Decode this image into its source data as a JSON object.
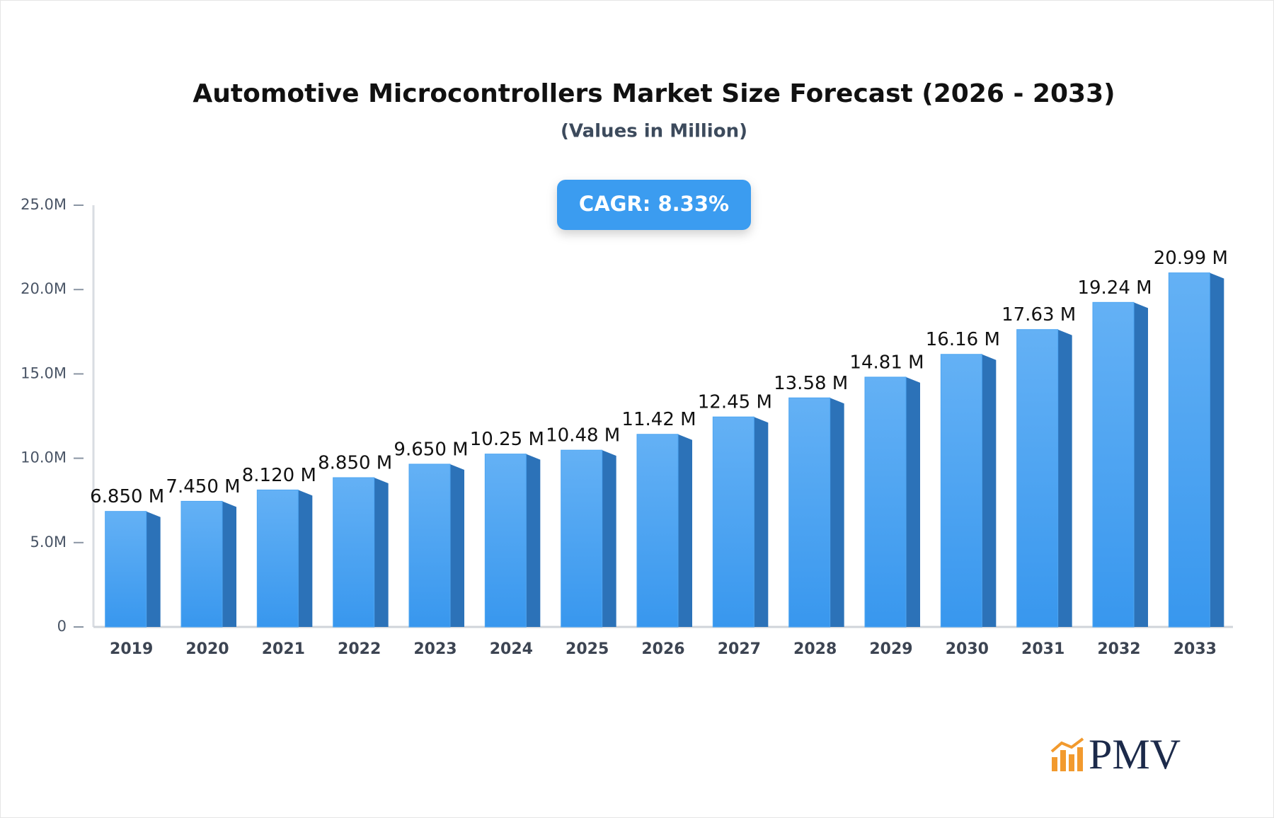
{
  "chart_data": {
    "type": "bar3d",
    "title": "Automotive Microcontrollers Market Size Forecast (2026 - 2033)",
    "subtitle": "(Values in Million)",
    "annotation": "CAGR: 8.33%",
    "logo": "PMV",
    "categories": [
      "2019",
      "2020",
      "2021",
      "2022",
      "2023",
      "2024",
      "2025",
      "2026",
      "2027",
      "2028",
      "2029",
      "2030",
      "2031",
      "2032",
      "2033"
    ],
    "values": [
      6.85,
      7.45,
      8.12,
      8.85,
      9.65,
      10.25,
      10.48,
      11.42,
      12.45,
      13.58,
      14.81,
      16.16,
      17.63,
      19.24,
      20.99
    ],
    "value_labels": [
      "6.850 M",
      "7.450 M",
      "8.120 M",
      "8.850 M",
      "9.650 M",
      "10.25 M",
      "10.48 M",
      "11.42 M",
      "12.45 M",
      "13.58 M",
      "14.81 M",
      "16.16 M",
      "17.63 M",
      "19.24 M",
      "20.99 M"
    ],
    "color": "#4ea6f2",
    "ylim": [
      0,
      25
    ],
    "yticks": [
      0,
      {
        "value": 5,
        "label": "5.0M"
      },
      {
        "value": 10,
        "label": "10.0M"
      },
      {
        "value": 15,
        "label": "15.0M"
      },
      {
        "value": 20,
        "label": "20.0M"
      },
      {
        "value": 25,
        "label": "25.0M"
      }
    ],
    "grid": false
  }
}
